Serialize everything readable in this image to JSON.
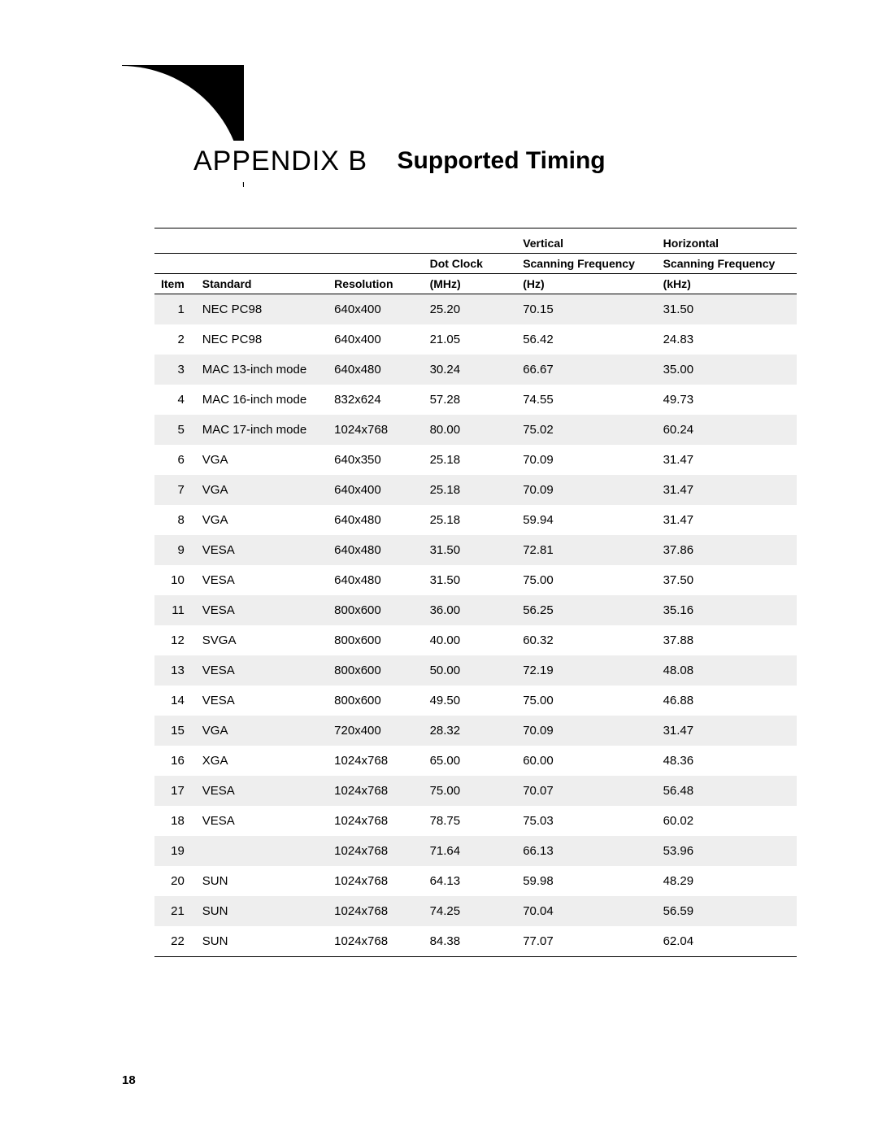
{
  "heading": {
    "appendix": "APPENDIX B",
    "subtitle": "Supported Timing"
  },
  "table": {
    "columns": {
      "item": "Item",
      "standard": "Standard",
      "resolution": "Resolution",
      "dotClock_l1": "Dot Clock",
      "dotClock_l2": "(MHz)",
      "vert_l1": "Vertical",
      "vert_l2": "Scanning Frequency",
      "vert_l3": "(Hz)",
      "horz_l1": "Horizontal",
      "horz_l2": "Scanning Frequency",
      "horz_l3": "(kHz)"
    },
    "rows": [
      {
        "item": "1",
        "standard": "NEC PC98",
        "resolution": "640x400",
        "dotClock": "25.20",
        "vert": "70.15",
        "horz": "31.50"
      },
      {
        "item": "2",
        "standard": "NEC PC98",
        "resolution": "640x400",
        "dotClock": "21.05",
        "vert": "56.42",
        "horz": "24.83"
      },
      {
        "item": "3",
        "standard": "MAC 13-inch mode",
        "resolution": "640x480",
        "dotClock": "30.24",
        "vert": "66.67",
        "horz": "35.00"
      },
      {
        "item": "4",
        "standard": "MAC 16-inch mode",
        "resolution": "832x624",
        "dotClock": "57.28",
        "vert": "74.55",
        "horz": "49.73"
      },
      {
        "item": "5",
        "standard": "MAC 17-inch mode",
        "resolution": "1024x768",
        "dotClock": "80.00",
        "vert": "75.02",
        "horz": "60.24"
      },
      {
        "item": "6",
        "standard": "VGA",
        "resolution": "640x350",
        "dotClock": "25.18",
        "vert": "70.09",
        "horz": "31.47"
      },
      {
        "item": "7",
        "standard": "VGA",
        "resolution": "640x400",
        "dotClock": "25.18",
        "vert": "70.09",
        "horz": "31.47"
      },
      {
        "item": "8",
        "standard": "VGA",
        "resolution": "640x480",
        "dotClock": "25.18",
        "vert": "59.94",
        "horz": "31.47"
      },
      {
        "item": "9",
        "standard": "VESA",
        "resolution": "640x480",
        "dotClock": "31.50",
        "vert": "72.81",
        "horz": "37.86"
      },
      {
        "item": "10",
        "standard": "VESA",
        "resolution": "640x480",
        "dotClock": "31.50",
        "vert": "75.00",
        "horz": "37.50"
      },
      {
        "item": "11",
        "standard": "VESA",
        "resolution": "800x600",
        "dotClock": "36.00",
        "vert": "56.25",
        "horz": "35.16"
      },
      {
        "item": "12",
        "standard": "SVGA",
        "resolution": "800x600",
        "dotClock": "40.00",
        "vert": "60.32",
        "horz": "37.88"
      },
      {
        "item": "13",
        "standard": "VESA",
        "resolution": "800x600",
        "dotClock": "50.00",
        "vert": "72.19",
        "horz": "48.08"
      },
      {
        "item": "14",
        "standard": "VESA",
        "resolution": "800x600",
        "dotClock": "49.50",
        "vert": "75.00",
        "horz": "46.88"
      },
      {
        "item": "15",
        "standard": "VGA",
        "resolution": "720x400",
        "dotClock": "28.32",
        "vert": "70.09",
        "horz": "31.47"
      },
      {
        "item": "16",
        "standard": "XGA",
        "resolution": "1024x768",
        "dotClock": "65.00",
        "vert": "60.00",
        "horz": "48.36"
      },
      {
        "item": "17",
        "standard": "VESA",
        "resolution": "1024x768",
        "dotClock": "75.00",
        "vert": "70.07",
        "horz": "56.48"
      },
      {
        "item": "18",
        "standard": "VESA",
        "resolution": "1024x768",
        "dotClock": "78.75",
        "vert": "75.03",
        "horz": "60.02"
      },
      {
        "item": "19",
        "standard": "",
        "resolution": "1024x768",
        "dotClock": "71.64",
        "vert": "66.13",
        "horz": "53.96"
      },
      {
        "item": "20",
        "standard": "SUN",
        "resolution": "1024x768",
        "dotClock": "64.13",
        "vert": "59.98",
        "horz": "48.29"
      },
      {
        "item": "21",
        "standard": "SUN",
        "resolution": "1024x768",
        "dotClock": "74.25",
        "vert": "70.04",
        "horz": "56.59"
      },
      {
        "item": "22",
        "standard": "SUN",
        "resolution": "1024x768",
        "dotClock": "84.38",
        "vert": "77.07",
        "horz": "62.04"
      }
    ]
  },
  "pageNumber": "18",
  "colors": {
    "rowStripe": "#eeeeee",
    "text": "#000000",
    "background": "#ffffff",
    "tab": "#000000"
  }
}
